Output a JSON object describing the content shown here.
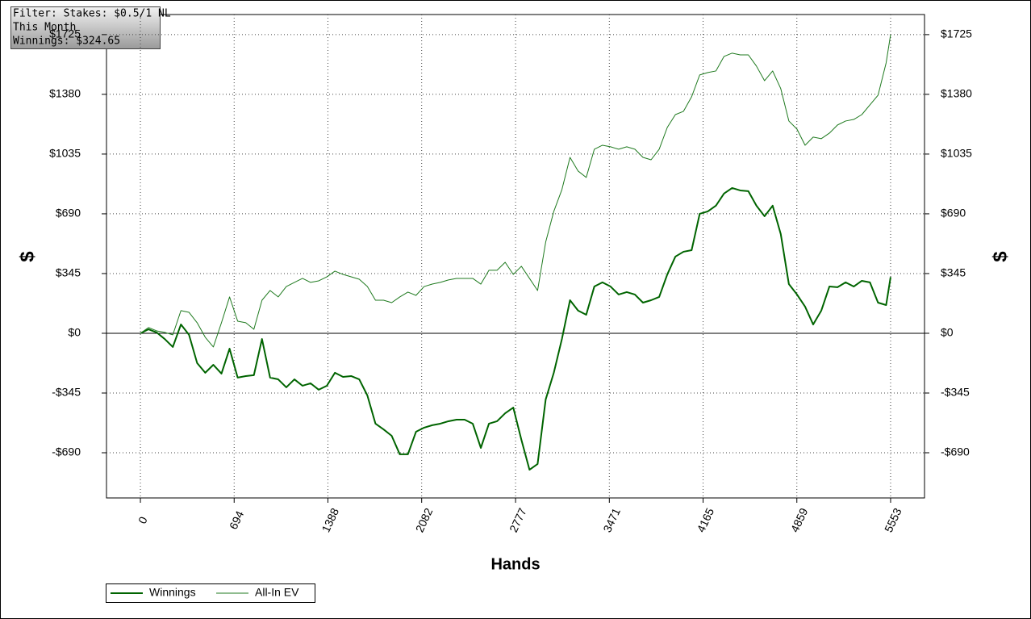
{
  "chart_data": {
    "type": "line",
    "info": [
      "Filter: Stakes: $0.5/1 NL",
      "This Month",
      "Winnings: $324.65"
    ],
    "xlabel": "Hands",
    "ylabel": "$",
    "y2label": "$",
    "x": [
      0,
      60,
      120,
      180,
      240,
      300,
      360,
      420,
      480,
      540,
      600,
      660,
      720,
      780,
      840,
      900,
      960,
      1020,
      1080,
      1140,
      1200,
      1260,
      1320,
      1380,
      1440,
      1500,
      1560,
      1620,
      1680,
      1740,
      1800,
      1860,
      1920,
      1980,
      2040,
      2100,
      2160,
      2220,
      2280,
      2340,
      2400,
      2460,
      2520,
      2580,
      2640,
      2700,
      2760,
      2820,
      2880,
      2940,
      3000,
      3060,
      3120,
      3180,
      3240,
      3300,
      3360,
      3420,
      3480,
      3540,
      3600,
      3660,
      3720,
      3780,
      3840,
      3900,
      3960,
      4020,
      4080,
      4140,
      4200,
      4260,
      4320,
      4380,
      4440,
      4500,
      4560,
      4620,
      4680,
      4740,
      4800,
      4860,
      4920,
      4980,
      5040,
      5100,
      5160,
      5220,
      5280,
      5340,
      5400,
      5460,
      5520,
      5553
    ],
    "series": [
      {
        "name": "Winnings",
        "color": "#006400",
        "width": 2,
        "values": [
          0,
          23,
          5,
          -33,
          -79,
          51,
          -9,
          -172,
          -228,
          -182,
          -233,
          -89,
          -256,
          -247,
          -242,
          -33,
          -256,
          -266,
          -312,
          -266,
          -303,
          -289,
          -326,
          -303,
          -228,
          -252,
          -247,
          -266,
          -359,
          -522,
          -555,
          -592,
          -699,
          -699,
          -569,
          -545,
          -531,
          -522,
          -508,
          -499,
          -499,
          -522,
          -662,
          -522,
          -508,
          -462,
          -429,
          -615,
          -788,
          -755,
          -382,
          -228,
          -33,
          191,
          131,
          107,
          270,
          294,
          270,
          224,
          238,
          224,
          177,
          191,
          210,
          340,
          443,
          471,
          480,
          690,
          704,
          737,
          807,
          839,
          825,
          821,
          737,
          676,
          737,
          573,
          284,
          224,
          154,
          51,
          131,
          270,
          266,
          294,
          270,
          303,
          294,
          177,
          163,
          324.65
        ]
      },
      {
        "name": "All-In EV",
        "color": "#1f7a1f",
        "width": 1,
        "values": [
          0,
          33,
          14,
          5,
          -9,
          131,
          121,
          61,
          -23,
          -79,
          61,
          210,
          70,
          61,
          23,
          191,
          247,
          210,
          270,
          294,
          317,
          294,
          303,
          326,
          359,
          340,
          326,
          312,
          270,
          191,
          191,
          177,
          210,
          238,
          219,
          270,
          284,
          294,
          308,
          317,
          317,
          317,
          284,
          364,
          364,
          410,
          340,
          387,
          317,
          247,
          527,
          704,
          830,
          1016,
          937,
          900,
          1063,
          1086,
          1077,
          1063,
          1077,
          1063,
          1016,
          1002,
          1063,
          1189,
          1263,
          1282,
          1366,
          1492,
          1506,
          1515,
          1599,
          1618,
          1608,
          1608,
          1543,
          1459,
          1515,
          1413,
          1226,
          1179,
          1086,
          1133,
          1124,
          1156,
          1203,
          1226,
          1235,
          1263,
          1319,
          1375,
          1562,
          1725
        ]
      }
    ],
    "xlim": [
      -251,
      5804
    ],
    "xticks": [
      0,
      694,
      1388,
      2082,
      2777,
      3471,
      4165,
      4859,
      5553
    ],
    "ylim": [
      -951,
      1841
    ],
    "yticks": [
      {
        "value": -690,
        "label": "-$690"
      },
      {
        "value": -345,
        "label": "-$345"
      },
      {
        "value": 0,
        "label": "$0"
      },
      {
        "value": 345,
        "label": "$345"
      },
      {
        "value": 690,
        "label": "$690"
      },
      {
        "value": 1035,
        "label": "$1035"
      },
      {
        "value": 1380,
        "label": "$1380"
      },
      {
        "value": 1725,
        "label": "$1725"
      }
    ],
    "grid": true,
    "legend": "lower left"
  }
}
